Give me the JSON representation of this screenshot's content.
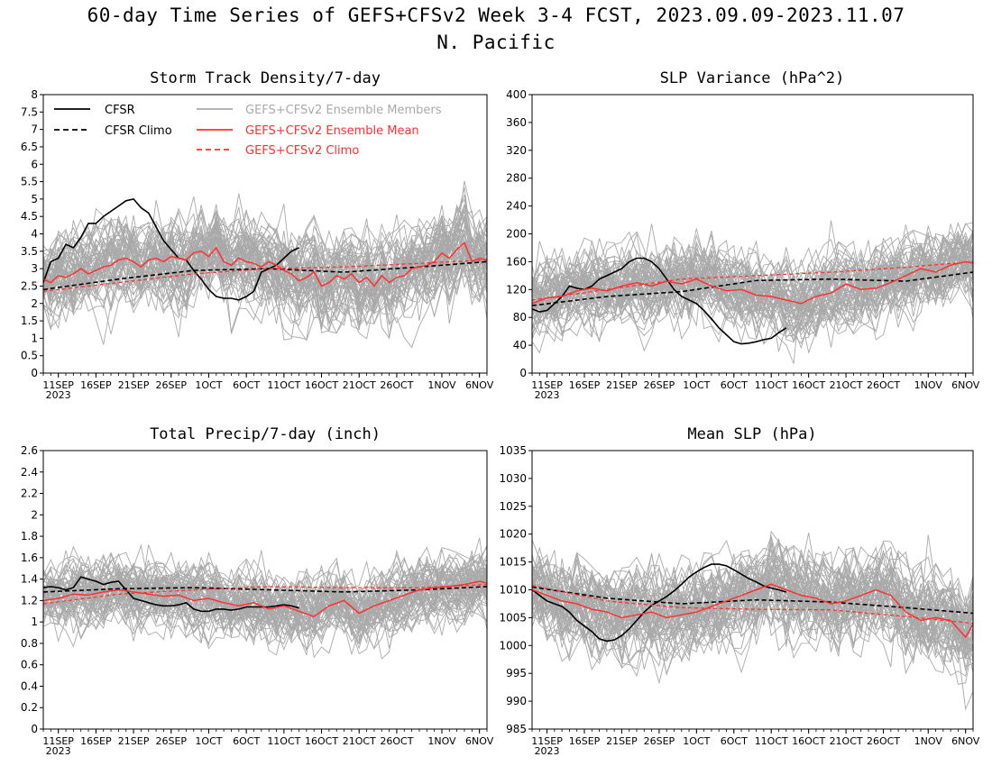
{
  "header": {
    "title_line1": "60-day Time Series of GEFS+CFSv2 Week 3-4 FCST, 2023.09.09-2023.11.07",
    "title_line2": "N. Pacific"
  },
  "colors": {
    "cfsr": "#000000",
    "members": "#a9a9a9",
    "ens_mean": "#ff3030",
    "background": "#ffffff"
  },
  "legend": {
    "cfsr": "CFSR",
    "cfsr_climo": "CFSR Climo",
    "members": "GEFS+CFSv2 Ensemble Members",
    "ens_mean": "GEFS+CFSv2 Ensemble Mean",
    "ens_climo": "GEFS+CFSv2 Climo"
  },
  "chart_data": [
    {
      "type": "line",
      "title": "Storm Track Density/7-day",
      "ylim": [
        0,
        8
      ],
      "yticks": [
        "0",
        "0.5",
        "1",
        "1.5",
        "2",
        "2.5",
        "3",
        "3.5",
        "4",
        "4.5",
        "5",
        "5.5",
        "6",
        "6.5",
        "7",
        "7.5",
        "8"
      ],
      "x_dates": [
        "2023-09-09",
        "2023-11-07"
      ],
      "xtick_labels": [
        "11SEP",
        "16SEP",
        "21SEP",
        "26SEP",
        "1OCT",
        "6OCT",
        "11OCT",
        "16OCT",
        "21OCT",
        "26OCT",
        "1NOV",
        "6NOV"
      ],
      "xtick_year": "2023",
      "series": [
        {
          "name": "CFSR",
          "style": "solid-black",
          "x": [
            0,
            1,
            2,
            3,
            4,
            5,
            6,
            7,
            8,
            9,
            10,
            11,
            12,
            13,
            14,
            15,
            16,
            17,
            18,
            19,
            20,
            21,
            22,
            23,
            24,
            25,
            26,
            27,
            28,
            29,
            30,
            31,
            32,
            33,
            34
          ],
          "values": [
            2.6,
            3.2,
            3.3,
            3.7,
            3.6,
            3.9,
            4.3,
            4.3,
            4.5,
            4.65,
            4.8,
            4.95,
            5.0,
            4.75,
            4.6,
            4.2,
            3.8,
            3.55,
            3.3,
            3.25,
            2.95,
            2.7,
            2.4,
            2.2,
            2.15,
            2.15,
            2.1,
            2.2,
            2.35,
            2.9,
            3.0,
            3.1,
            3.3,
            3.5,
            3.6
          ]
        },
        {
          "name": "CFSR Climo",
          "style": "dashed-black",
          "x": [
            0,
            10,
            20,
            30,
            40,
            50,
            59
          ],
          "values": [
            2.4,
            2.7,
            2.95,
            3.0,
            2.9,
            3.05,
            3.2
          ]
        },
        {
          "name": "GEFS+CFSv2 Ensemble Mean",
          "style": "solid-red",
          "x": [
            0,
            1,
            2,
            3,
            4,
            5,
            6,
            7,
            8,
            9,
            10,
            11,
            12,
            13,
            14,
            15,
            16,
            17,
            18,
            19,
            20,
            21,
            22,
            23,
            24,
            25,
            26,
            27,
            28,
            29,
            30,
            31,
            32,
            33,
            34,
            35,
            36,
            37,
            38,
            39,
            40,
            41,
            42,
            43,
            44,
            45,
            46,
            47,
            48,
            49,
            50,
            51,
            52,
            53,
            54,
            55,
            56,
            57,
            58,
            59
          ],
          "values": [
            2.7,
            2.6,
            2.8,
            2.75,
            2.85,
            3.0,
            2.85,
            2.95,
            3.05,
            3.1,
            3.25,
            3.3,
            3.2,
            3.05,
            3.25,
            3.3,
            3.2,
            3.35,
            3.3,
            3.25,
            3.45,
            3.5,
            3.35,
            3.6,
            3.2,
            3.1,
            3.3,
            3.2,
            3.15,
            3.05,
            3.2,
            3.1,
            2.95,
            2.85,
            2.65,
            2.75,
            2.9,
            2.5,
            2.6,
            2.8,
            2.7,
            2.85,
            2.6,
            2.75,
            2.5,
            2.8,
            2.6,
            2.75,
            2.8,
            3.0,
            3.05,
            3.1,
            3.2,
            3.45,
            3.3,
            3.55,
            3.75,
            3.2,
            3.3,
            3.25
          ]
        },
        {
          "name": "GEFS+CFSv2 Climo",
          "style": "dashed-red",
          "x": [
            0,
            10,
            20,
            30,
            40,
            50,
            59
          ],
          "values": [
            2.35,
            2.6,
            2.85,
            3.0,
            3.05,
            3.15,
            3.25
          ]
        }
      ]
    },
    {
      "type": "line",
      "title": "SLP Variance (hPa^2)",
      "ylim": [
        0,
        400
      ],
      "yticks": [
        "0",
        "40",
        "80",
        "120",
        "160",
        "200",
        "240",
        "280",
        "320",
        "360",
        "400"
      ],
      "x_dates": [
        "2023-09-09",
        "2023-11-07"
      ],
      "xtick_labels": [
        "11SEP",
        "16SEP",
        "21SEP",
        "26SEP",
        "1OCT",
        "6OCT",
        "11OCT",
        "16OCT",
        "21OCT",
        "26OCT",
        "1NOV",
        "6NOV"
      ],
      "xtick_year": "2023",
      "series": [
        {
          "name": "CFSR",
          "style": "solid-black",
          "x": [
            0,
            1,
            2,
            3,
            4,
            5,
            6,
            7,
            8,
            9,
            10,
            11,
            12,
            13,
            14,
            15,
            16,
            17,
            18,
            19,
            20,
            21,
            22,
            23,
            24,
            25,
            26,
            27,
            28,
            29,
            30,
            31,
            32,
            33,
            34
          ],
          "values": [
            92,
            88,
            90,
            100,
            110,
            125,
            122,
            120,
            125,
            135,
            140,
            145,
            150,
            160,
            165,
            165,
            160,
            150,
            135,
            120,
            110,
            105,
            100,
            90,
            78,
            65,
            55,
            45,
            42,
            43,
            45,
            48,
            50,
            58,
            65
          ]
        },
        {
          "name": "CFSR Climo",
          "style": "dashed-black",
          "x": [
            0,
            10,
            20,
            30,
            40,
            50,
            59
          ],
          "values": [
            97,
            110,
            117,
            133,
            135,
            132,
            145
          ]
        },
        {
          "name": "GEFS+CFSv2 Ensemble Mean",
          "style": "solid-red",
          "x": [
            0,
            2,
            4,
            6,
            8,
            10,
            12,
            14,
            16,
            18,
            20,
            22,
            24,
            26,
            28,
            30,
            32,
            34,
            36,
            38,
            40,
            42,
            44,
            46,
            48,
            50,
            52,
            54,
            56,
            58,
            59
          ],
          "values": [
            100,
            108,
            110,
            118,
            122,
            118,
            125,
            130,
            125,
            132,
            128,
            135,
            125,
            118,
            120,
            112,
            110,
            105,
            100,
            110,
            115,
            128,
            120,
            122,
            130,
            140,
            150,
            145,
            155,
            160,
            158
          ]
        },
        {
          "name": "GEFS+CFSv2 Climo",
          "style": "dashed-red",
          "x": [
            0,
            10,
            20,
            30,
            40,
            50,
            59
          ],
          "values": [
            105,
            120,
            135,
            140,
            145,
            152,
            160
          ]
        }
      ]
    },
    {
      "type": "line",
      "title": "Total Precip/7-day (inch)",
      "ylim": [
        0,
        2.6
      ],
      "yticks": [
        "0",
        "0.2",
        "0.4",
        "0.6",
        "0.8",
        "1",
        "1.2",
        "1.4",
        "1.6",
        "1.8",
        "2",
        "2.2",
        "2.4",
        "2.6"
      ],
      "x_dates": [
        "2023-09-09",
        "2023-11-07"
      ],
      "xtick_labels": [
        "11SEP",
        "16SEP",
        "21SEP",
        "26SEP",
        "1OCT",
        "6OCT",
        "11OCT",
        "16OCT",
        "21OCT",
        "26OCT",
        "1NOV",
        "6NOV"
      ],
      "xtick_year": "2023",
      "series": [
        {
          "name": "CFSR",
          "style": "solid-black",
          "x": [
            0,
            1,
            2,
            3,
            4,
            5,
            6,
            7,
            8,
            9,
            10,
            11,
            12,
            13,
            14,
            15,
            16,
            17,
            18,
            19,
            20,
            21,
            22,
            23,
            24,
            25,
            26,
            27,
            28,
            29,
            30,
            31,
            32,
            33,
            34
          ],
          "values": [
            1.32,
            1.33,
            1.32,
            1.3,
            1.32,
            1.42,
            1.4,
            1.38,
            1.35,
            1.37,
            1.38,
            1.3,
            1.22,
            1.2,
            1.18,
            1.16,
            1.15,
            1.15,
            1.16,
            1.18,
            1.12,
            1.1,
            1.1,
            1.12,
            1.12,
            1.11,
            1.12,
            1.14,
            1.14,
            1.14,
            1.14,
            1.15,
            1.16,
            1.15,
            1.13
          ]
        },
        {
          "name": "CFSR Climo",
          "style": "dashed-black",
          "x": [
            0,
            10,
            20,
            30,
            40,
            50,
            59
          ],
          "values": [
            1.28,
            1.31,
            1.32,
            1.3,
            1.28,
            1.3,
            1.33
          ]
        },
        {
          "name": "GEFS+CFSv2 Ensemble Mean",
          "style": "solid-red",
          "x": [
            0,
            2,
            4,
            6,
            8,
            10,
            12,
            14,
            16,
            18,
            20,
            22,
            24,
            26,
            28,
            30,
            32,
            34,
            36,
            38,
            40,
            42,
            44,
            46,
            48,
            50,
            52,
            54,
            56,
            58,
            59
          ],
          "values": [
            1.2,
            1.22,
            1.26,
            1.25,
            1.28,
            1.3,
            1.28,
            1.26,
            1.24,
            1.25,
            1.2,
            1.22,
            1.18,
            1.15,
            1.18,
            1.12,
            1.15,
            1.1,
            1.05,
            1.15,
            1.2,
            1.08,
            1.15,
            1.2,
            1.25,
            1.3,
            1.32,
            1.33,
            1.35,
            1.38,
            1.36
          ]
        },
        {
          "name": "GEFS+CFSv2 Climo",
          "style": "dashed-red",
          "x": [
            0,
            10,
            20,
            30,
            40,
            50,
            59
          ],
          "values": [
            1.17,
            1.26,
            1.3,
            1.33,
            1.32,
            1.32,
            1.35
          ]
        }
      ]
    },
    {
      "type": "line",
      "title": "Mean SLP (hPa)",
      "ylim": [
        985,
        1035
      ],
      "yticks": [
        "985",
        "990",
        "995",
        "1000",
        "1005",
        "1010",
        "1015",
        "1020",
        "1025",
        "1030",
        "1035"
      ],
      "x_dates": [
        "2023-09-09",
        "2023-11-07"
      ],
      "xtick_labels": [
        "11SEP",
        "16SEP",
        "21SEP",
        "26SEP",
        "1OCT",
        "6OCT",
        "11OCT",
        "16OCT",
        "21OCT",
        "26OCT",
        "1NOV",
        "6NOV"
      ],
      "xtick_year": "2023",
      "series": [
        {
          "name": "CFSR",
          "style": "solid-black",
          "x": [
            0,
            1,
            2,
            3,
            4,
            5,
            6,
            7,
            8,
            9,
            10,
            11,
            12,
            13,
            14,
            15,
            16,
            17,
            18,
            19,
            20,
            21,
            22,
            23,
            24,
            25,
            26,
            27,
            28,
            29,
            30,
            31,
            32,
            33,
            34
          ],
          "values": [
            1010,
            1009,
            1008,
            1007.5,
            1007,
            1006,
            1004.5,
            1003.5,
            1002.5,
            1001.2,
            1000.8,
            1001,
            1001.8,
            1003,
            1004.5,
            1006,
            1007.2,
            1008,
            1008.8,
            1009.8,
            1011,
            1012.3,
            1013.2,
            1014,
            1014.6,
            1014.6,
            1014.3,
            1013.6,
            1012.8,
            1012,
            1011.4,
            1010.7,
            1010.3,
            1010,
            1009.6
          ]
        },
        {
          "name": "CFSR Climo",
          "style": "dashed-black",
          "x": [
            0,
            10,
            20,
            30,
            40,
            50,
            59
          ],
          "values": [
            1010.5,
            1008.5,
            1007.5,
            1008.2,
            1007.8,
            1006.8,
            1005.8
          ]
        },
        {
          "name": "GEFS+CFSv2 Ensemble Mean",
          "style": "solid-red",
          "x": [
            0,
            2,
            4,
            6,
            8,
            10,
            12,
            14,
            16,
            18,
            20,
            22,
            24,
            26,
            28,
            30,
            32,
            34,
            36,
            38,
            40,
            42,
            44,
            46,
            48,
            50,
            52,
            54,
            56,
            58,
            59
          ],
          "values": [
            1010,
            1009,
            1008,
            1007.5,
            1006.5,
            1006,
            1005,
            1005.5,
            1006,
            1005,
            1005.5,
            1006,
            1007,
            1008,
            1009,
            1010,
            1011,
            1010,
            1009,
            1008.5,
            1007.5,
            1008,
            1009,
            1010,
            1009,
            1006,
            1004.5,
            1005,
            1004.5,
            1001.5,
            1003.8
          ]
        },
        {
          "name": "GEFS+CFSv2 Climo",
          "style": "dashed-red",
          "x": [
            0,
            10,
            20,
            30,
            40,
            50,
            59
          ],
          "values": [
            1010.8,
            1008,
            1006.8,
            1006.5,
            1006.4,
            1005.2,
            1004
          ]
        }
      ]
    }
  ]
}
